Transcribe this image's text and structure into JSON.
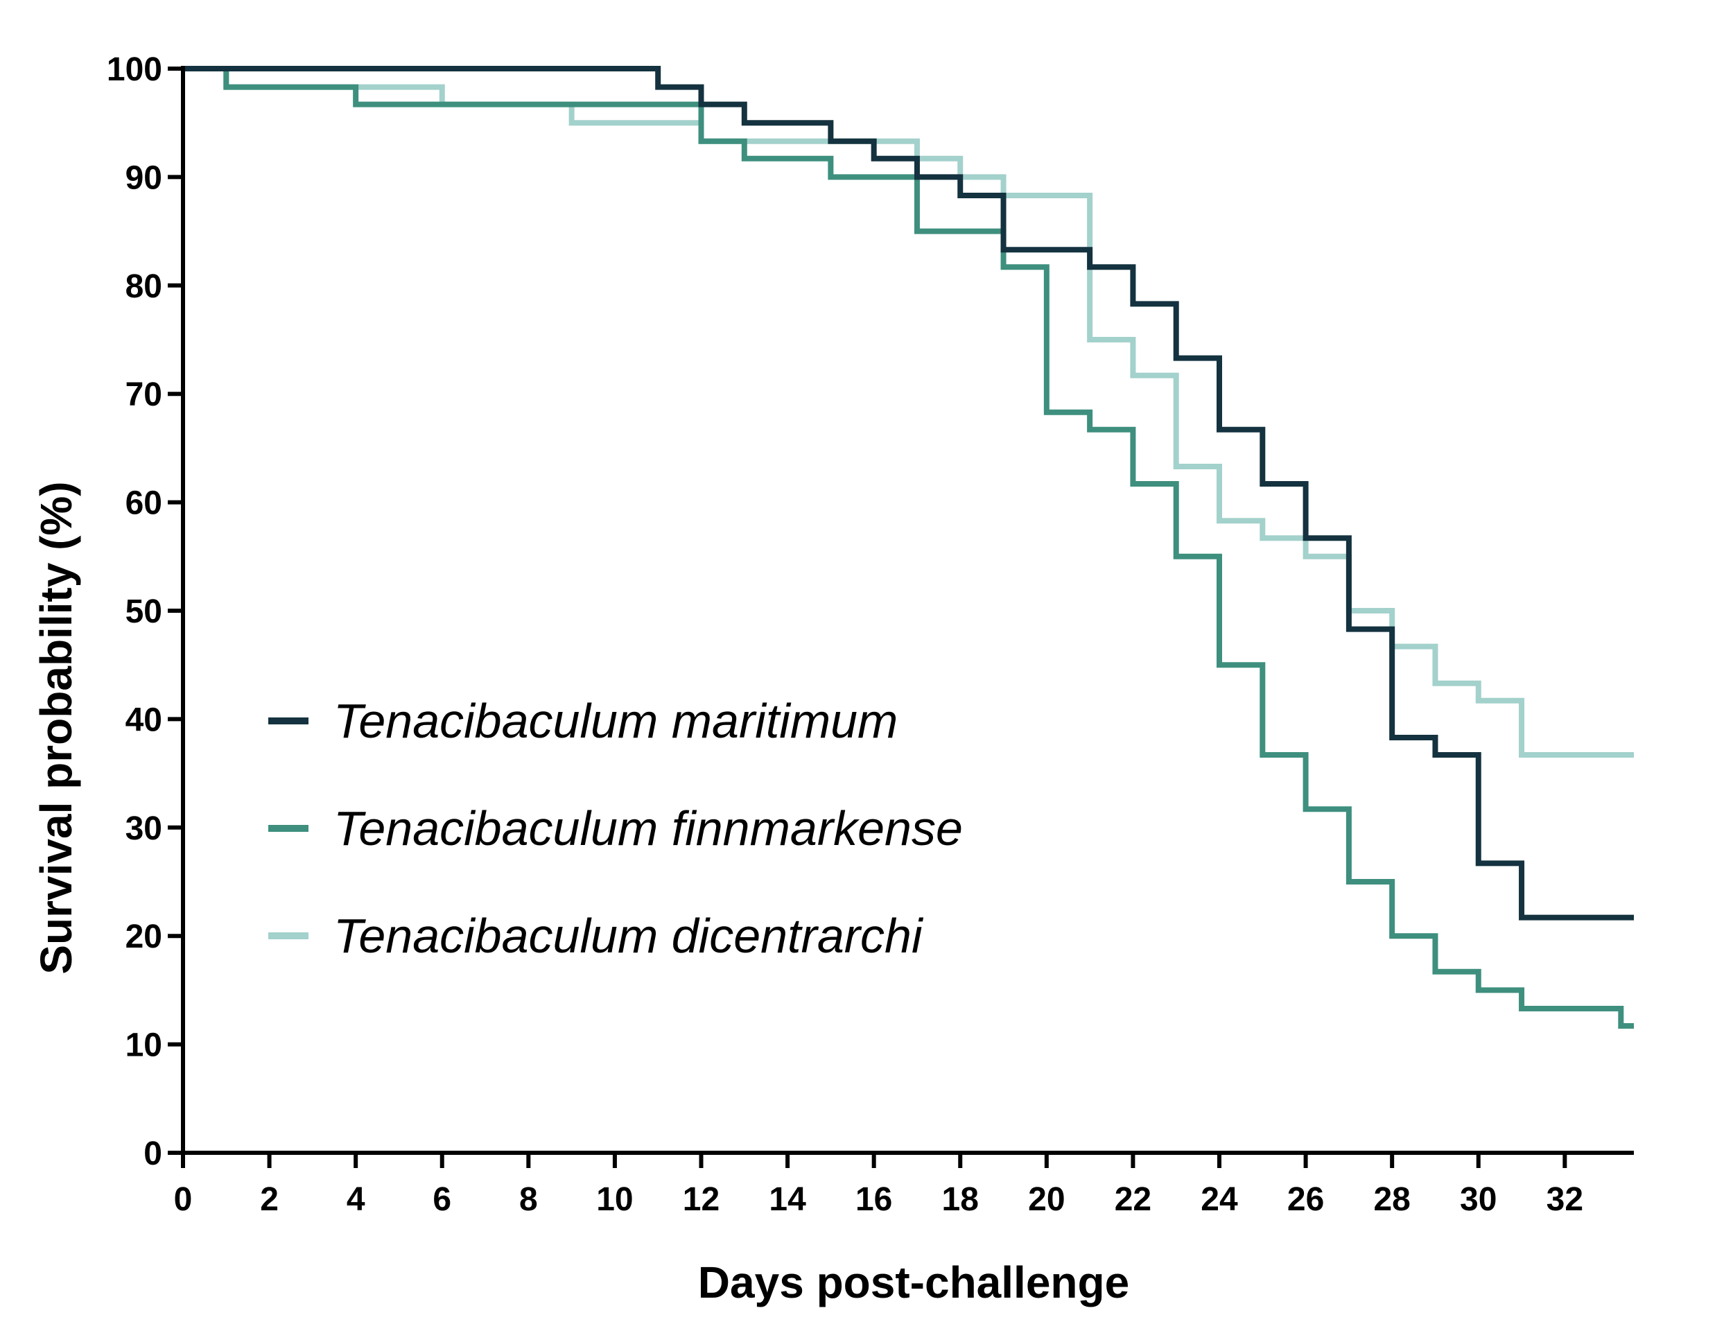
{
  "chart_data": {
    "type": "line",
    "step": true,
    "title": "",
    "xlabel": "Days post-challenge",
    "ylabel": "Survival probability (%)",
    "xlim": [
      0,
      33.6
    ],
    "ylim": [
      0,
      100
    ],
    "xticks": [
      0,
      2,
      4,
      6,
      8,
      10,
      12,
      14,
      16,
      18,
      20,
      22,
      24,
      26,
      28,
      30,
      32
    ],
    "yticks": [
      0,
      10,
      20,
      30,
      40,
      50,
      60,
      70,
      80,
      90,
      100
    ],
    "grid": false,
    "legend_position": "center-left",
    "series": [
      {
        "name": "Tenacibaculum maritimum",
        "color": "#14323f",
        "x": [
          0,
          11,
          12,
          13,
          15,
          16,
          17,
          18,
          19,
          21,
          22,
          23,
          24,
          25,
          26,
          27,
          28,
          29,
          30,
          31,
          33.6
        ],
        "y": [
          100,
          98.3,
          96.7,
          95,
          93.3,
          91.7,
          90,
          88.3,
          83.3,
          81.7,
          78.3,
          73.3,
          66.7,
          61.7,
          56.7,
          48.3,
          38.3,
          36.7,
          26.7,
          21.7,
          21.7
        ]
      },
      {
        "name": "Tenacibaculum finnmarkense",
        "color": "#3e8f7e",
        "x": [
          0,
          1,
          4,
          12,
          13,
          15,
          17,
          19,
          20,
          21,
          22,
          23,
          24,
          25,
          26,
          27,
          28,
          29,
          30,
          31,
          33.3,
          33.6
        ],
        "y": [
          100,
          98.3,
          96.7,
          93.3,
          91.7,
          90,
          85,
          81.7,
          68.3,
          66.7,
          61.7,
          55,
          45,
          36.7,
          31.7,
          25,
          20,
          16.7,
          15,
          13.3,
          11.7,
          11.7
        ]
      },
      {
        "name": "Tenacibaculum dicentrarchi",
        "color": "#a3d1cc",
        "x": [
          0,
          1,
          6,
          9,
          12,
          16,
          17,
          18,
          19,
          21,
          22,
          23,
          24,
          25,
          26,
          27,
          28,
          29,
          30,
          31,
          33.6
        ],
        "y": [
          100,
          98.3,
          96.7,
          95,
          93.3,
          93.3,
          91.7,
          90,
          88.3,
          75,
          71.7,
          63.3,
          58.3,
          56.7,
          55,
          50,
          46.7,
          43.3,
          41.7,
          36.7,
          36.7
        ]
      }
    ]
  }
}
